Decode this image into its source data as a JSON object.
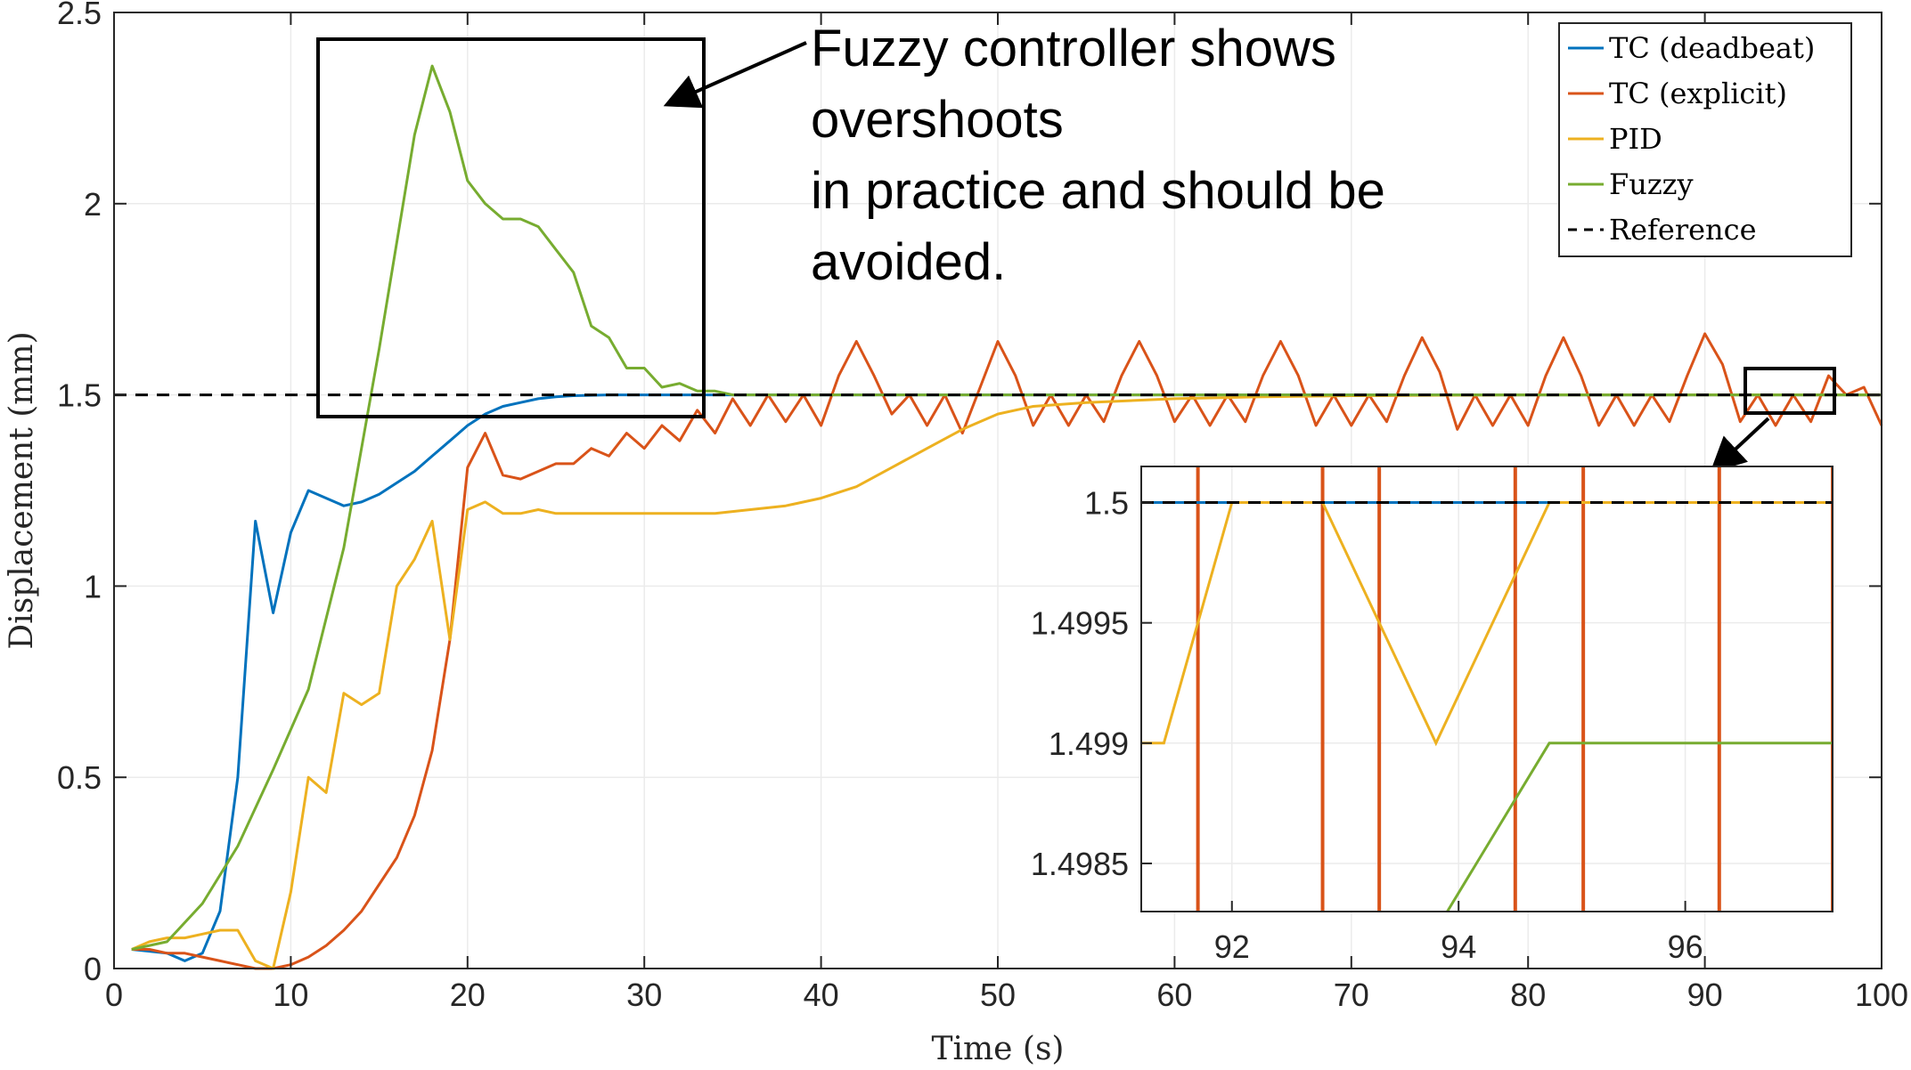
{
  "chart_data": {
    "type": "line",
    "xlabel": "Time (s)",
    "ylabel": "Displacement (mm)",
    "xlim": [
      0,
      100
    ],
    "ylim": [
      0,
      2.5
    ],
    "xticks": [
      "0",
      "10",
      "20",
      "30",
      "40",
      "50",
      "60",
      "70",
      "80",
      "90",
      "100"
    ],
    "yticks": [
      "0",
      "0.5",
      "1",
      "1.5",
      "2",
      "2.5"
    ],
    "grid": true,
    "legend_position": "top-right",
    "series": [
      {
        "name": "TC (deadbeat)",
        "color": "#0072BD",
        "x": [
          1,
          3,
          4,
          5,
          6,
          7,
          8,
          9,
          10,
          11,
          12,
          13,
          14,
          15,
          16,
          17,
          18,
          19,
          20,
          21,
          22,
          23,
          24,
          25,
          26,
          28,
          30,
          32,
          35,
          40,
          45,
          50,
          55,
          60,
          65,
          70,
          75,
          80,
          85,
          90,
          95,
          100
        ],
        "y": [
          0.05,
          0.04,
          0.02,
          0.04,
          0.15,
          0.5,
          1.17,
          0.93,
          1.14,
          1.25,
          1.23,
          1.21,
          1.22,
          1.24,
          1.27,
          1.3,
          1.34,
          1.38,
          1.42,
          1.45,
          1.47,
          1.48,
          1.49,
          1.495,
          1.498,
          1.5,
          1.5,
          1.5,
          1.5,
          1.5,
          1.5,
          1.5,
          1.5,
          1.5,
          1.5,
          1.5,
          1.5,
          1.5,
          1.5,
          1.5,
          1.5,
          1.5
        ]
      },
      {
        "name": "TC (explicit)",
        "color": "#D95319",
        "x": [
          1,
          2,
          3,
          4,
          5,
          6,
          7,
          8,
          9,
          10,
          11,
          12,
          13,
          14,
          15,
          16,
          17,
          18,
          19,
          20,
          21,
          22,
          23,
          24,
          25,
          26,
          27,
          28,
          29,
          30,
          31,
          32,
          33,
          34,
          35,
          36,
          37,
          38,
          39,
          40,
          41,
          42,
          43,
          44,
          45,
          46,
          47,
          48,
          49,
          50,
          51,
          52,
          53,
          54,
          55,
          56,
          57,
          58,
          59,
          60,
          61,
          62,
          63,
          64,
          65,
          66,
          67,
          68,
          69,
          70,
          71,
          72,
          73,
          74,
          75,
          76,
          77,
          78,
          79,
          80,
          81,
          82,
          83,
          84,
          85,
          86,
          87,
          88,
          89,
          90,
          91,
          92,
          93,
          94,
          95,
          96,
          97,
          98,
          99,
          100
        ],
        "y": [
          0.05,
          0.05,
          0.04,
          0.04,
          0.03,
          0.02,
          0.01,
          0.0,
          0.0,
          0.01,
          0.03,
          0.06,
          0.1,
          0.15,
          0.22,
          0.29,
          0.4,
          0.57,
          0.86,
          1.31,
          1.4,
          1.29,
          1.28,
          1.3,
          1.32,
          1.32,
          1.36,
          1.34,
          1.4,
          1.36,
          1.42,
          1.38,
          1.46,
          1.4,
          1.49,
          1.42,
          1.5,
          1.43,
          1.5,
          1.42,
          1.55,
          1.64,
          1.55,
          1.45,
          1.5,
          1.42,
          1.5,
          1.4,
          1.52,
          1.64,
          1.55,
          1.42,
          1.5,
          1.42,
          1.5,
          1.43,
          1.55,
          1.64,
          1.55,
          1.43,
          1.5,
          1.42,
          1.5,
          1.43,
          1.55,
          1.64,
          1.55,
          1.42,
          1.5,
          1.42,
          1.5,
          1.43,
          1.55,
          1.65,
          1.56,
          1.41,
          1.5,
          1.42,
          1.5,
          1.42,
          1.55,
          1.65,
          1.55,
          1.42,
          1.5,
          1.42,
          1.5,
          1.43,
          1.55,
          1.66,
          1.58,
          1.43,
          1.5,
          1.42,
          1.5,
          1.43,
          1.55,
          1.5,
          1.52,
          1.42
        ]
      },
      {
        "name": "PID",
        "color": "#EDB120",
        "x": [
          1,
          2,
          3,
          4,
          5,
          6,
          7,
          8,
          9,
          10,
          11,
          12,
          13,
          14,
          15,
          16,
          17,
          18,
          19,
          20,
          21,
          22,
          23,
          24,
          25,
          26,
          27,
          28,
          30,
          32,
          34,
          36,
          38,
          40,
          42,
          44,
          46,
          48,
          50,
          52,
          55,
          60,
          65,
          70,
          75,
          80,
          85,
          90,
          95,
          100
        ],
        "y": [
          0.05,
          0.07,
          0.08,
          0.08,
          0.09,
          0.1,
          0.1,
          0.02,
          0.0,
          0.2,
          0.5,
          0.46,
          0.72,
          0.69,
          0.72,
          1.0,
          1.07,
          1.17,
          0.86,
          1.2,
          1.22,
          1.19,
          1.19,
          1.2,
          1.19,
          1.19,
          1.19,
          1.19,
          1.19,
          1.19,
          1.19,
          1.2,
          1.21,
          1.23,
          1.26,
          1.31,
          1.36,
          1.41,
          1.45,
          1.47,
          1.48,
          1.49,
          1.495,
          1.498,
          1.499,
          1.5,
          1.5,
          1.5,
          1.5,
          1.5
        ]
      },
      {
        "name": "Fuzzy",
        "color": "#77AC30",
        "x": [
          1,
          3,
          5,
          7,
          9,
          11,
          13,
          15,
          17,
          18,
          19,
          20,
          21,
          22,
          23,
          24,
          25,
          26,
          27,
          28,
          29,
          30,
          31,
          32,
          33,
          34,
          35,
          40,
          45,
          50,
          60,
          70,
          80,
          90,
          100
        ],
        "y": [
          0.05,
          0.07,
          0.17,
          0.32,
          0.52,
          0.73,
          1.1,
          1.62,
          2.18,
          2.36,
          2.24,
          2.06,
          2.0,
          1.96,
          1.96,
          1.94,
          1.88,
          1.82,
          1.68,
          1.65,
          1.57,
          1.57,
          1.52,
          1.53,
          1.51,
          1.51,
          1.5,
          1.5,
          1.5,
          1.5,
          1.5,
          1.5,
          1.5,
          1.5,
          1.5
        ]
      },
      {
        "name": "Reference",
        "color": "#000000",
        "dashed": true,
        "x": [
          0,
          100
        ],
        "y": [
          1.5,
          1.5
        ]
      }
    ],
    "inset": {
      "xlim": [
        91.2,
        97.3
      ],
      "ylim": [
        1.4983,
        1.50015
      ],
      "xticks": [
        "92",
        "94",
        "96"
      ],
      "yticks": [
        "1.4985",
        "1.499",
        "1.4995",
        "1.5"
      ],
      "series": [
        {
          "name": "PID",
          "color": "#EDB120",
          "x": [
            91.2,
            91.4,
            92.0,
            92.8,
            93.8,
            94.8,
            97.3
          ],
          "y": [
            1.499,
            1.499,
            1.5,
            1.5,
            1.499,
            1.5,
            1.5
          ]
        },
        {
          "name": "Fuzzy",
          "color": "#77AC30",
          "x": [
            93.9,
            94.8,
            97.3
          ],
          "y": [
            1.4983,
            1.499,
            1.499
          ]
        },
        {
          "name": "TC (explicit)",
          "color": "#D95319",
          "vlines": [
            91.7,
            92.8,
            93.3,
            94.5,
            95.1,
            96.3,
            97.3
          ]
        }
      ]
    },
    "annotation": {
      "lines": [
        "Fuzzy controller shows",
        "overshoots",
        "in practice and should be",
        "avoided."
      ]
    }
  }
}
